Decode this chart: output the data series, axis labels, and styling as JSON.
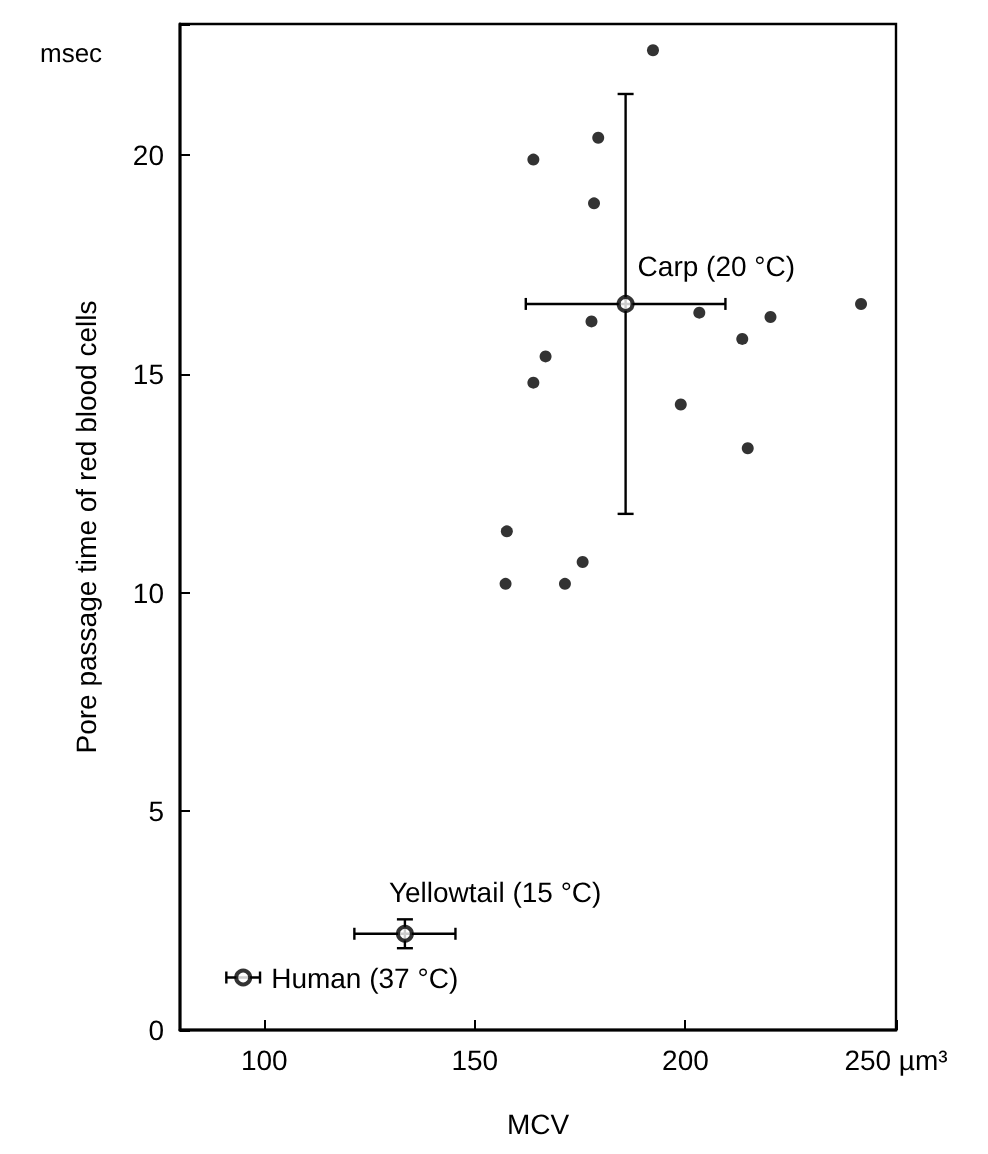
{
  "chart_data": {
    "type": "scatter",
    "xlabel": "MCV",
    "ylabel": "Pore passage time of red blood cells",
    "xlim": [
      80,
      250
    ],
    "xticks": [
      100,
      150,
      200,
      {
        "value": 250,
        "label": "250 µm³"
      }
    ],
    "ylim": [
      0,
      23
    ],
    "yticks": [
      0,
      5,
      10,
      15,
      20
    ],
    "grid": false,
    "marker": "circle",
    "annotations": [
      "msec",
      {
        "text": "Carp (20 °C)",
        "x": 185.8,
        "y": 16.6
      },
      {
        "text": "Yellowtail (15 °C)",
        "x": 133.4,
        "y": 2.2
      },
      {
        "text": "Human (37 °C)",
        "x": 95,
        "y": 1.2
      }
    ],
    "series": [
      {
        "color": "#000000",
        "x": [
          192.3,
          179.3,
          163.9,
          178.3,
          203.3,
          177.7,
          220.2,
          241.7,
          213.5,
          166.8,
          163.9,
          198.9,
          214.8,
          157.6,
          175.6,
          157.3,
          171.4
        ],
        "values": [
          22.4,
          20.4,
          19.9,
          18.9,
          16.4,
          16.2,
          16.3,
          16.6,
          15.8,
          15.4,
          14.8,
          14.3,
          13.3,
          11.4,
          10.7,
          10.2,
          10.2
        ]
      },
      {
        "color": "#000000",
        "x": [
          185.8,
          133.4,
          95
        ],
        "values": [
          16.6,
          2.2,
          1.2
        ],
        "errors": [
          4.8,
          0.33,
          null
        ],
        "xerrors": [
          23.7,
          12,
          4
        ]
      }
    ]
  }
}
